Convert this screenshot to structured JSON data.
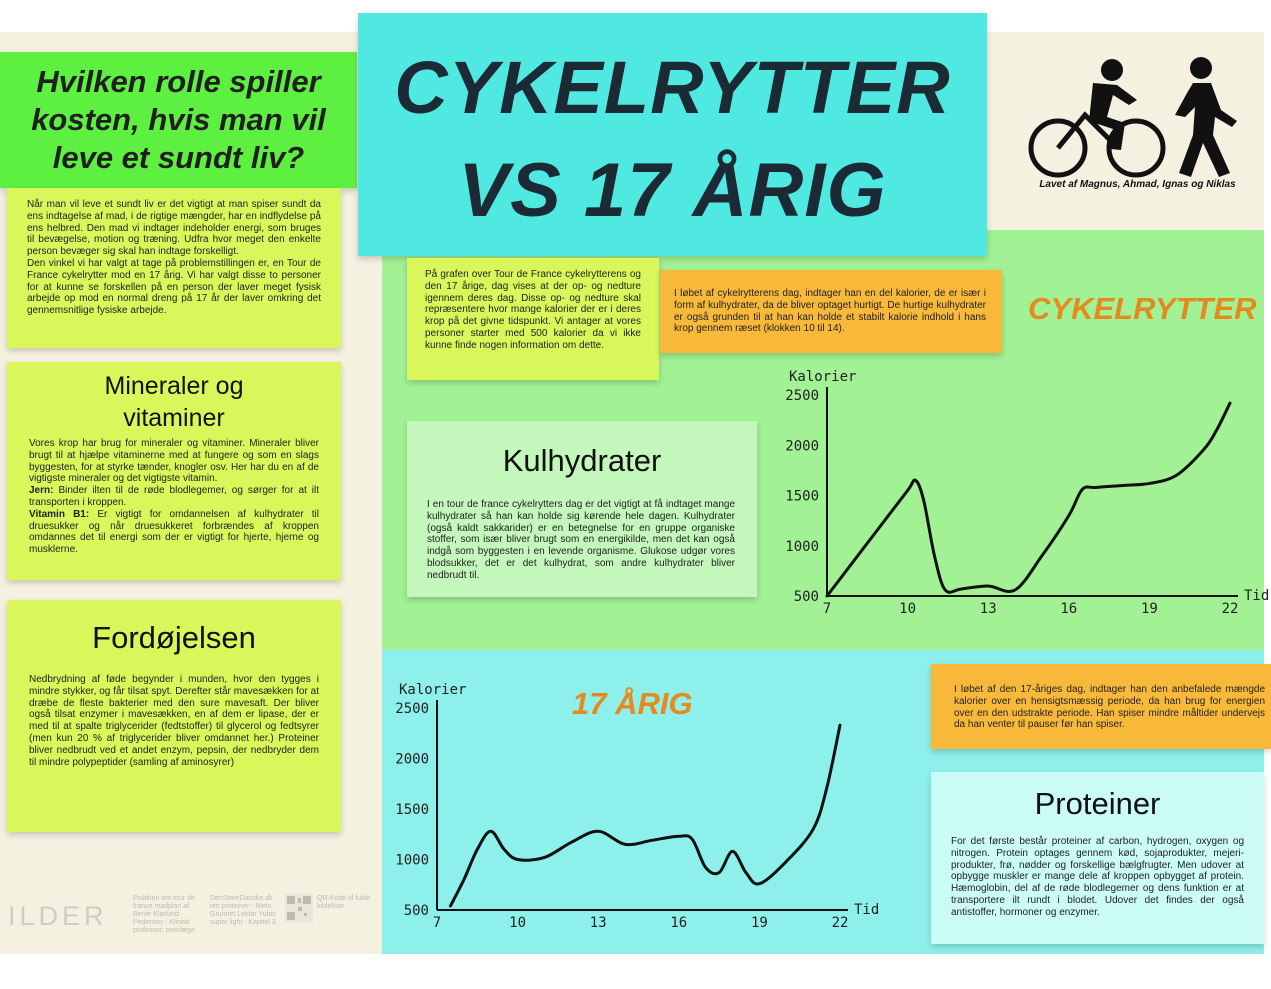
{
  "title": {
    "line1": "CYKELRYTTER",
    "line2": "VS 17 ÅRIG"
  },
  "question": "Hvilken rolle spiller kosten, hvis man vil leve et sundt liv?",
  "intro": {
    "p1": "Når man vil leve et sundt liv er det vigtigt at man spiser sundt da ens indtagelse af mad, i de rigtige mængder, har en indflydelse på ens helbred. Den mad vi indtager indeholder energi, som bruges til bevægelse, motion og træning. Udfra hvor meget den enkelte person bevæger sig skal han indtage forskelligt.",
    "p2": "Den vinkel vi har valgt at tage på problemstillingen er, en Tour de France cykelrytter mod en 17 årig. Vi har valgt disse to personer for at kunne se forskellen på en person der laver meget fysisk arbejde op mod en normal dreng på 17 år der laver omkring det gennemsnitlige fysiske arbejde."
  },
  "minerals": {
    "heading_line1": "Mineraler og",
    "heading_line2": "vitaminer",
    "p1": "Vores krop har brug for mineraler og vitaminer. Mineraler bliver brugt til at hjælpe vitaminerne med at fungere og som en slags byggesten, for at styrke tænder, knogler osv. Her har du en af de vigtigste mineraler og det vigtigste vitamin.",
    "iron_label": "Jern:",
    "iron_text": " Binder ilten til de røde blodlegemer, og sørger for at ilt transporten i kroppen.",
    "b1_label": "Vitamin B1:",
    "b1_text": " Er vigtigt for omdannelsen af kulhydrater til druesukker og når druesukkeret forbrændes af kroppen omdannes det til energi som der er vigtigt for hjerte, hjerne og musklerne."
  },
  "digestion": {
    "heading": "Fordøjelsen",
    "p1": "Nedbrydning af føde begynder i munden, hvor den tygges i mindre stykker, og får tilsat spyt. Derefter står mavesækken for at dræbe de fleste bakterier med den sure mavesaft. Der bliver også tilsat enzymer i mavesækken, en af dem er lipase, der er med til at spalte triglycerider (fedtstoffer) til glycerol og fedtsyrer (men kun 20 % af triglycerider bliver omdannet her.) Proteiner bliver nedbrudt ved et andet enzym, pepsin, der nedbryder dem til mindre polypeptider (samling af aminosyrer)"
  },
  "credit": "Lavet af Magnus, Ahmad, Ignas og Niklas",
  "graph_note": "På grafen over Tour de France cykelrytterens og den 17 årige, dag vises at der op- og nedture igennem deres dag. Disse op- og nedture skal repræsentere hvor mange kalorier der er i deres krop på det givne tidspunkt.  Vi antager at vores personer starter med 500 kalorier da vi ikke kunne finde nogen information om dette.",
  "cyclist_note": "I løbet af cykelrytterens dag, indtager han en del kalorier, de er især i form af kulhydrater, da de bliver optaget hurtigt. De hurtige kulhydrater er også grunden til at han kan holde et stabilt kalorie indhold i hans krop gennem ræset (klokken 10 til 14).",
  "teen_note": "I løbet af den 17-åriges dag, indtager han den anbefalede mængde kalorier over en hensigtsmæssig periode, da han brug for energien over en den udstrakte periode. Han spiser mindre måltider undervejs da han venter til pauser før han spiser.",
  "label_cyclist": "CYKELRYTTER",
  "label_teen": "17 ÅRIG",
  "carbs": {
    "heading": "Kulhydrater",
    "p1": "I en tour de france cykelrytters dag er det vigtigt at få indtaget mange kulhydrater så han kan holde sig kørende hele dagen. Kulhydrater (også kaldt sakkarider) er en betegnelse for en gruppe organiske stoffer, som især bliver brugt som en energikilde, men det kan også indgå som byggesten i en levende organisme. Glukose udgør vores blodsukker, det er det kulhydrat, som andre kulhydrater bliver nedbrudt til."
  },
  "protein": {
    "heading": "Proteiner",
    "p1": "For det første består proteiner af carbon, hydrogen, oxygen og nitrogen. Protein optages gennem kød, sojaprodukter, mejeri-produkter, frø, nødder og forskellige bælgfrugter. Men udover at opbygge muskler er mange dele af kroppen opbygget af protein. Hæmoglobin, del af de røde blodlegemer og dens funktion er at transportere ilt rundt i blodet. Udover det findes der også antistoffer, hormoner og enzymer."
  },
  "sources": {
    "heading": "ILDER",
    "s1": "Politiken om tour de france madplan af Bente Klarlund Pedersen - Klinisk professor, overlæge",
    "s2": "DenStoreDanske.dk om proteiner - Niels Grunnet Lektor Yubio super light - Kapitel 3",
    "s3": "QR-Kode til fulde kildeliste"
  },
  "icons": {
    "cyclist": "cyclist-icon",
    "walker": "walker-icon",
    "qr": "qr-code-icon"
  },
  "colors": {
    "accent_orange": "#e68a1f",
    "title_cyan": "#4fe9e1",
    "question_green": "#5df041"
  },
  "chart_data": [
    {
      "type": "line",
      "name": "cyclist",
      "ylabel": "Kalorier",
      "xlabel": "Tid",
      "xticks": [
        7,
        10,
        13,
        16,
        19,
        22
      ],
      "yticks": [
        500,
        1000,
        1500,
        2000,
        2500
      ],
      "xlim": [
        7,
        22
      ],
      "ylim": [
        500,
        2500
      ],
      "x": [
        7,
        8,
        9,
        10,
        10.3,
        10.6,
        11,
        11.4,
        12,
        13,
        14,
        15,
        16,
        16.5,
        17,
        18,
        19,
        20,
        21,
        21.5,
        22
      ],
      "y": [
        500,
        850,
        1200,
        1550,
        1650,
        1450,
        900,
        560,
        570,
        600,
        560,
        900,
        1300,
        1560,
        1580,
        1600,
        1620,
        1700,
        1950,
        2150,
        2420
      ]
    },
    {
      "type": "line",
      "name": "17-årig",
      "ylabel": "Kalorier",
      "xlabel": "Tid",
      "xticks": [
        7,
        10,
        13,
        16,
        19,
        22
      ],
      "yticks": [
        500,
        1000,
        1500,
        2000,
        2500
      ],
      "xlim": [
        7,
        22
      ],
      "ylim": [
        500,
        2500
      ],
      "x": [
        7.5,
        8,
        8.5,
        9,
        9.5,
        10,
        11,
        12,
        13,
        14,
        15,
        16,
        16.5,
        17,
        17.5,
        18,
        18.5,
        19,
        20,
        21,
        21.5,
        22
      ],
      "y": [
        540,
        800,
        1100,
        1280,
        1100,
        1000,
        1020,
        1170,
        1280,
        1150,
        1190,
        1230,
        1200,
        920,
        870,
        1080,
        870,
        760,
        980,
        1300,
        1700,
        2330
      ]
    }
  ]
}
